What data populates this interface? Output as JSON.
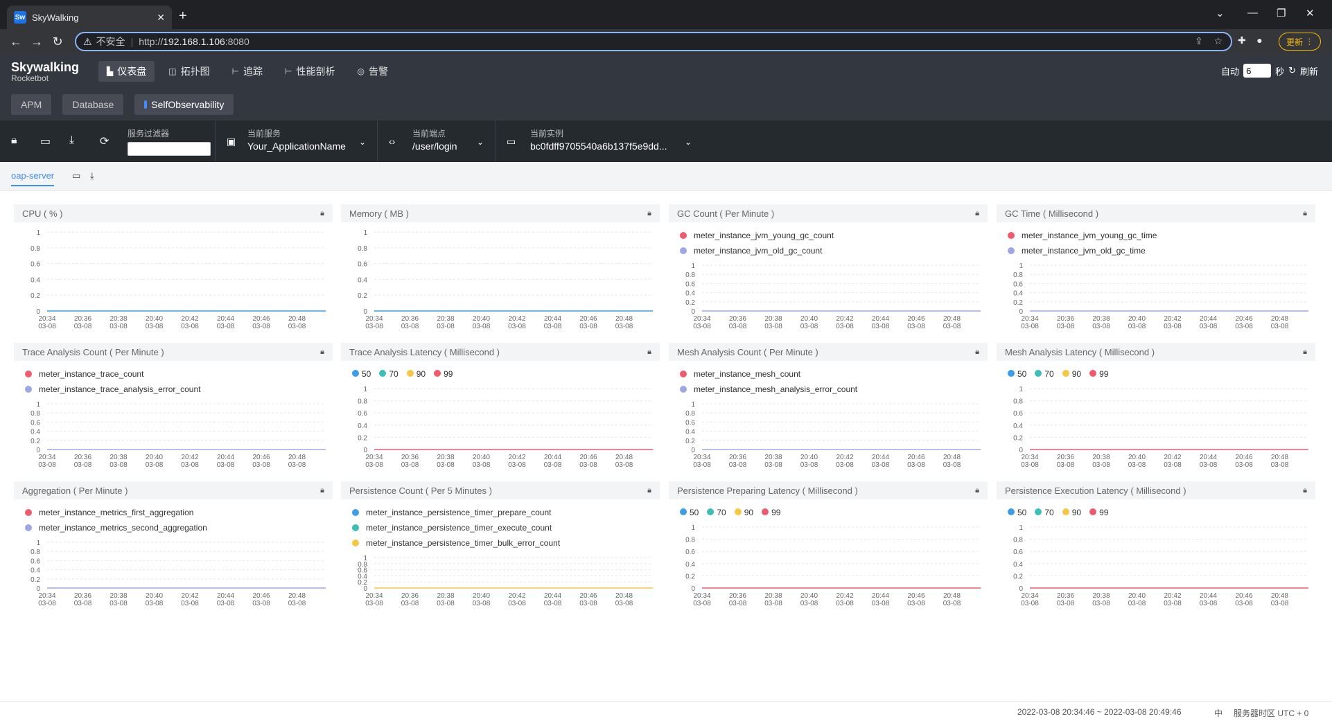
{
  "browser": {
    "tab_title": "SkyWalking",
    "favicon_text": "Sw",
    "insecure_label": "不安全",
    "url_scheme": "http://",
    "url_host": "192.168.1.106",
    "url_port": ":8080",
    "update_label": "更新"
  },
  "app": {
    "brand": "Skywalking",
    "brand_sub": "Rocketbot",
    "nav": [
      "仪表盘",
      "拓扑图",
      "追踪",
      "性能剖析",
      "告警"
    ],
    "auto_label": "自动",
    "interval_value": "6",
    "seconds_label": "秒",
    "refresh_label": "刷新",
    "subtabs": [
      "APM",
      "Database",
      "SelfObservability"
    ]
  },
  "toolbar": {
    "filter_label": "服务过滤器",
    "service_label": "当前服务",
    "service_value": "Your_ApplicationName",
    "endpoint_label": "当前端点",
    "endpoint_value": "/user/login",
    "instance_label": "当前实例",
    "instance_value": "bc0fdff9705540a6b137f5e9dd..."
  },
  "dashboard": {
    "tab": "oap-server"
  },
  "colors": {
    "red": "#f05a6e",
    "lavender": "#9ea7e6",
    "blue": "#3c9ee8",
    "teal": "#3bbfb7",
    "yellow": "#f6c744",
    "header": "#333840"
  },
  "x_ticks": [
    [
      "20:34",
      "03-08"
    ],
    [
      "20:36",
      "03-08"
    ],
    [
      "20:38",
      "03-08"
    ],
    [
      "20:40",
      "03-08"
    ],
    [
      "20:42",
      "03-08"
    ],
    [
      "20:44",
      "03-08"
    ],
    [
      "20:46",
      "03-08"
    ],
    [
      "20:48",
      "03-08"
    ]
  ],
  "y_ticks": [
    "1",
    "0.8",
    "0.6",
    "0.4",
    "0.2",
    "0"
  ],
  "panels": [
    {
      "title": "CPU ( % )",
      "legend": [],
      "legend_mode": "none",
      "line_color": "#3c9ee8"
    },
    {
      "title": "Memory ( MB )",
      "legend": [],
      "legend_mode": "none",
      "line_color": "#3c9ee8"
    },
    {
      "title": "GC Count ( Per Minute )",
      "legend": [
        {
          "label": "meter_instance_jvm_young_gc_count",
          "color": "#f05a6e"
        },
        {
          "label": "meter_instance_jvm_old_gc_count",
          "color": "#9ea7e6"
        }
      ],
      "legend_mode": "rows",
      "line_color": "#9ea7e6"
    },
    {
      "title": "GC Time ( Millisecond )",
      "legend": [
        {
          "label": "meter_instance_jvm_young_gc_time",
          "color": "#f05a6e"
        },
        {
          "label": "meter_instance_jvm_old_gc_time",
          "color": "#9ea7e6"
        }
      ],
      "legend_mode": "rows",
      "line_color": "#9ea7e6"
    },
    {
      "title": "Trace Analysis Count ( Per Minute )",
      "legend": [
        {
          "label": "meter_instance_trace_count",
          "color": "#f05a6e"
        },
        {
          "label": "meter_instance_trace_analysis_error_count",
          "color": "#9ea7e6"
        }
      ],
      "legend_mode": "rows",
      "line_color": "#9ea7e6"
    },
    {
      "title": "Trace Analysis Latency ( Millisecond )",
      "legend": [
        {
          "label": "50",
          "color": "#3c9ee8"
        },
        {
          "label": "70",
          "color": "#3bbfb7"
        },
        {
          "label": "90",
          "color": "#f6c744"
        },
        {
          "label": "99",
          "color": "#f05a6e"
        }
      ],
      "legend_mode": "inline",
      "line_color": "#f05a6e"
    },
    {
      "title": "Mesh Analysis Count ( Per Minute )",
      "legend": [
        {
          "label": "meter_instance_mesh_count",
          "color": "#f05a6e"
        },
        {
          "label": "meter_instance_mesh_analysis_error_count",
          "color": "#9ea7e6"
        }
      ],
      "legend_mode": "rows",
      "line_color": "#9ea7e6"
    },
    {
      "title": "Mesh Analysis Latency ( Millisecond )",
      "legend": [
        {
          "label": "50",
          "color": "#3c9ee8"
        },
        {
          "label": "70",
          "color": "#3bbfb7"
        },
        {
          "label": "90",
          "color": "#f6c744"
        },
        {
          "label": "99",
          "color": "#f05a6e"
        }
      ],
      "legend_mode": "inline",
      "line_color": "#f05a6e"
    },
    {
      "title": "Aggregation ( Per Minute )",
      "legend": [
        {
          "label": "meter_instance_metrics_first_aggregation",
          "color": "#f05a6e"
        },
        {
          "label": "meter_instance_metrics_second_aggregation",
          "color": "#9ea7e6"
        }
      ],
      "legend_mode": "rows",
      "line_color": "#9ea7e6"
    },
    {
      "title": "Persistence Count ( Per 5 Minutes )",
      "legend": [
        {
          "label": "meter_instance_persistence_timer_prepare_count",
          "color": "#3c9ee8"
        },
        {
          "label": "meter_instance_persistence_timer_execute_count",
          "color": "#3bbfb7"
        },
        {
          "label": "meter_instance_persistence_timer_bulk_error_count",
          "color": "#f6c744"
        }
      ],
      "legend_mode": "rows",
      "line_color": "#f6c744"
    },
    {
      "title": "Persistence Preparing Latency ( Millisecond )",
      "legend": [
        {
          "label": "50",
          "color": "#3c9ee8"
        },
        {
          "label": "70",
          "color": "#3bbfb7"
        },
        {
          "label": "90",
          "color": "#f6c744"
        },
        {
          "label": "99",
          "color": "#f05a6e"
        }
      ],
      "legend_mode": "inline",
      "line_color": "#f05a6e"
    },
    {
      "title": "Persistence Execution Latency ( Millisecond )",
      "legend": [
        {
          "label": "50",
          "color": "#3c9ee8"
        },
        {
          "label": "70",
          "color": "#3bbfb7"
        },
        {
          "label": "90",
          "color": "#f6c744"
        },
        {
          "label": "99",
          "color": "#f05a6e"
        }
      ],
      "legend_mode": "inline",
      "line_color": "#f05a6e"
    }
  ],
  "footer": {
    "time_range": "2022-03-08 20:34:46 ~ 2022-03-08 20:49:46",
    "lang": "中",
    "timezone": "服务器时区 UTC + 0"
  }
}
